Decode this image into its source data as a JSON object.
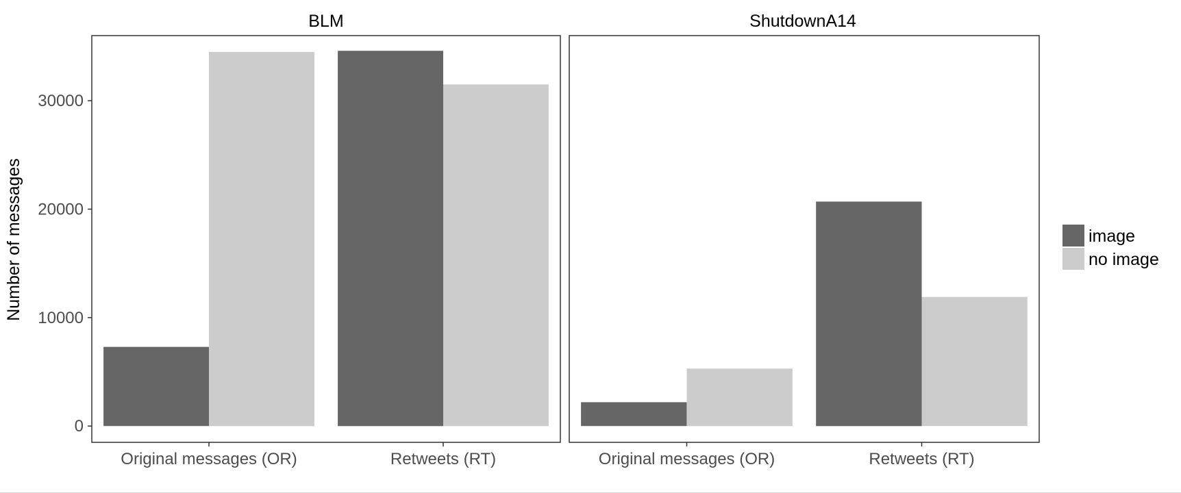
{
  "chart_data": {
    "type": "bar",
    "ylabel": "Number of messages",
    "xlabel": "",
    "ylim": [
      -1500,
      36000
    ],
    "yticks": [
      0,
      10000,
      20000,
      30000
    ],
    "ytick_labels": [
      "0",
      "10000",
      "20000",
      "30000"
    ],
    "categories": [
      "Original messages (OR)",
      "Retweets (RT)"
    ],
    "grid": false,
    "legend": {
      "position": "right",
      "entries": [
        {
          "label": "image",
          "color": "#666666"
        },
        {
          "label": "no image",
          "color": "#cccccc"
        }
      ]
    },
    "panels": [
      {
        "title": "BLM",
        "series": [
          {
            "name": "image",
            "values": [
              7300,
              34600
            ]
          },
          {
            "name": "no image",
            "values": [
              34500,
              31500
            ]
          }
        ]
      },
      {
        "title": "ShutdownA14",
        "series": [
          {
            "name": "image",
            "values": [
              2200,
              20700
            ]
          },
          {
            "name": "no image",
            "values": [
              5300,
              11900
            ]
          }
        ]
      }
    ]
  }
}
